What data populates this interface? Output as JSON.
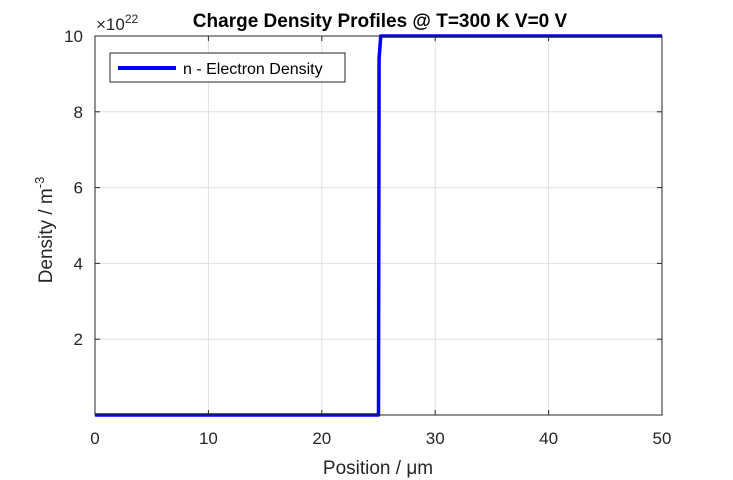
{
  "chart_data": {
    "type": "line",
    "title": "Charge Density Profiles @ T=300 K V=0 V",
    "xlabel": "Position / μm",
    "ylabel": "Density / m",
    "ylabel_exponent": "-3",
    "y_multiplier": {
      "base": "×10",
      "exponent": "22"
    },
    "xlim": [
      0,
      50
    ],
    "ylim": [
      0,
      10
    ],
    "x_ticks": [
      0,
      10,
      20,
      30,
      40,
      50
    ],
    "y_ticks": [
      2,
      4,
      6,
      8,
      10
    ],
    "grid": true,
    "legend_position": "top-left",
    "series": [
      {
        "name": "n - Electron Density",
        "color": "#0000ff",
        "x": [
          0,
          25,
          25.05,
          25.2,
          50
        ],
        "y": [
          0,
          0,
          9.4,
          10,
          10
        ]
      }
    ]
  }
}
